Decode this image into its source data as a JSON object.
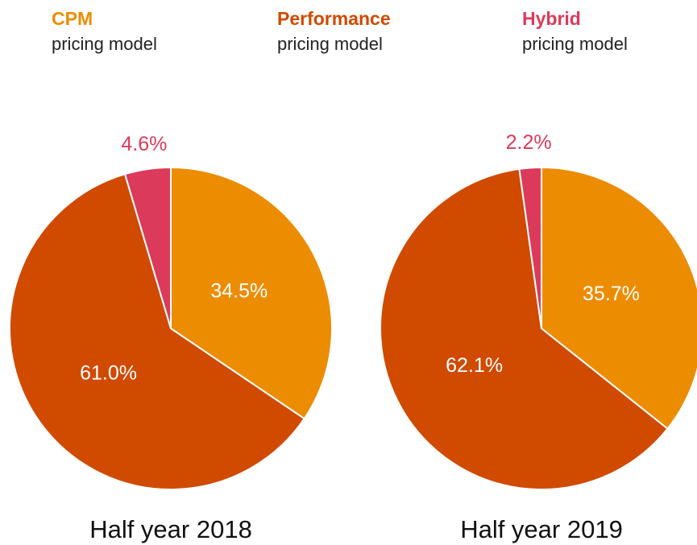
{
  "legend": [
    {
      "name": "CPM",
      "sub": "pricing model",
      "color": "#ec8c00"
    },
    {
      "name": "Performance",
      "sub": "pricing model",
      "color": "#d04a00"
    },
    {
      "name": "Hybrid",
      "sub": "pricing model",
      "color": "#dc3a5a"
    }
  ],
  "chart_data": [
    {
      "type": "pie",
      "title": "Half year 2018",
      "values": [
        34.5,
        61.0,
        4.6
      ],
      "value_labels": [
        "34.5%",
        "61.0%",
        "4.6%"
      ],
      "colors": [
        "#ec8c00",
        "#d04a00",
        "#dc3a5a"
      ]
    },
    {
      "type": "pie",
      "title": "Half year 2019",
      "values": [
        35.7,
        62.1,
        2.2
      ],
      "value_labels": [
        "35.7%",
        "62.1%",
        "2.2%"
      ],
      "colors": [
        "#ec8c00",
        "#d04a00",
        "#dc3a5a"
      ]
    }
  ]
}
